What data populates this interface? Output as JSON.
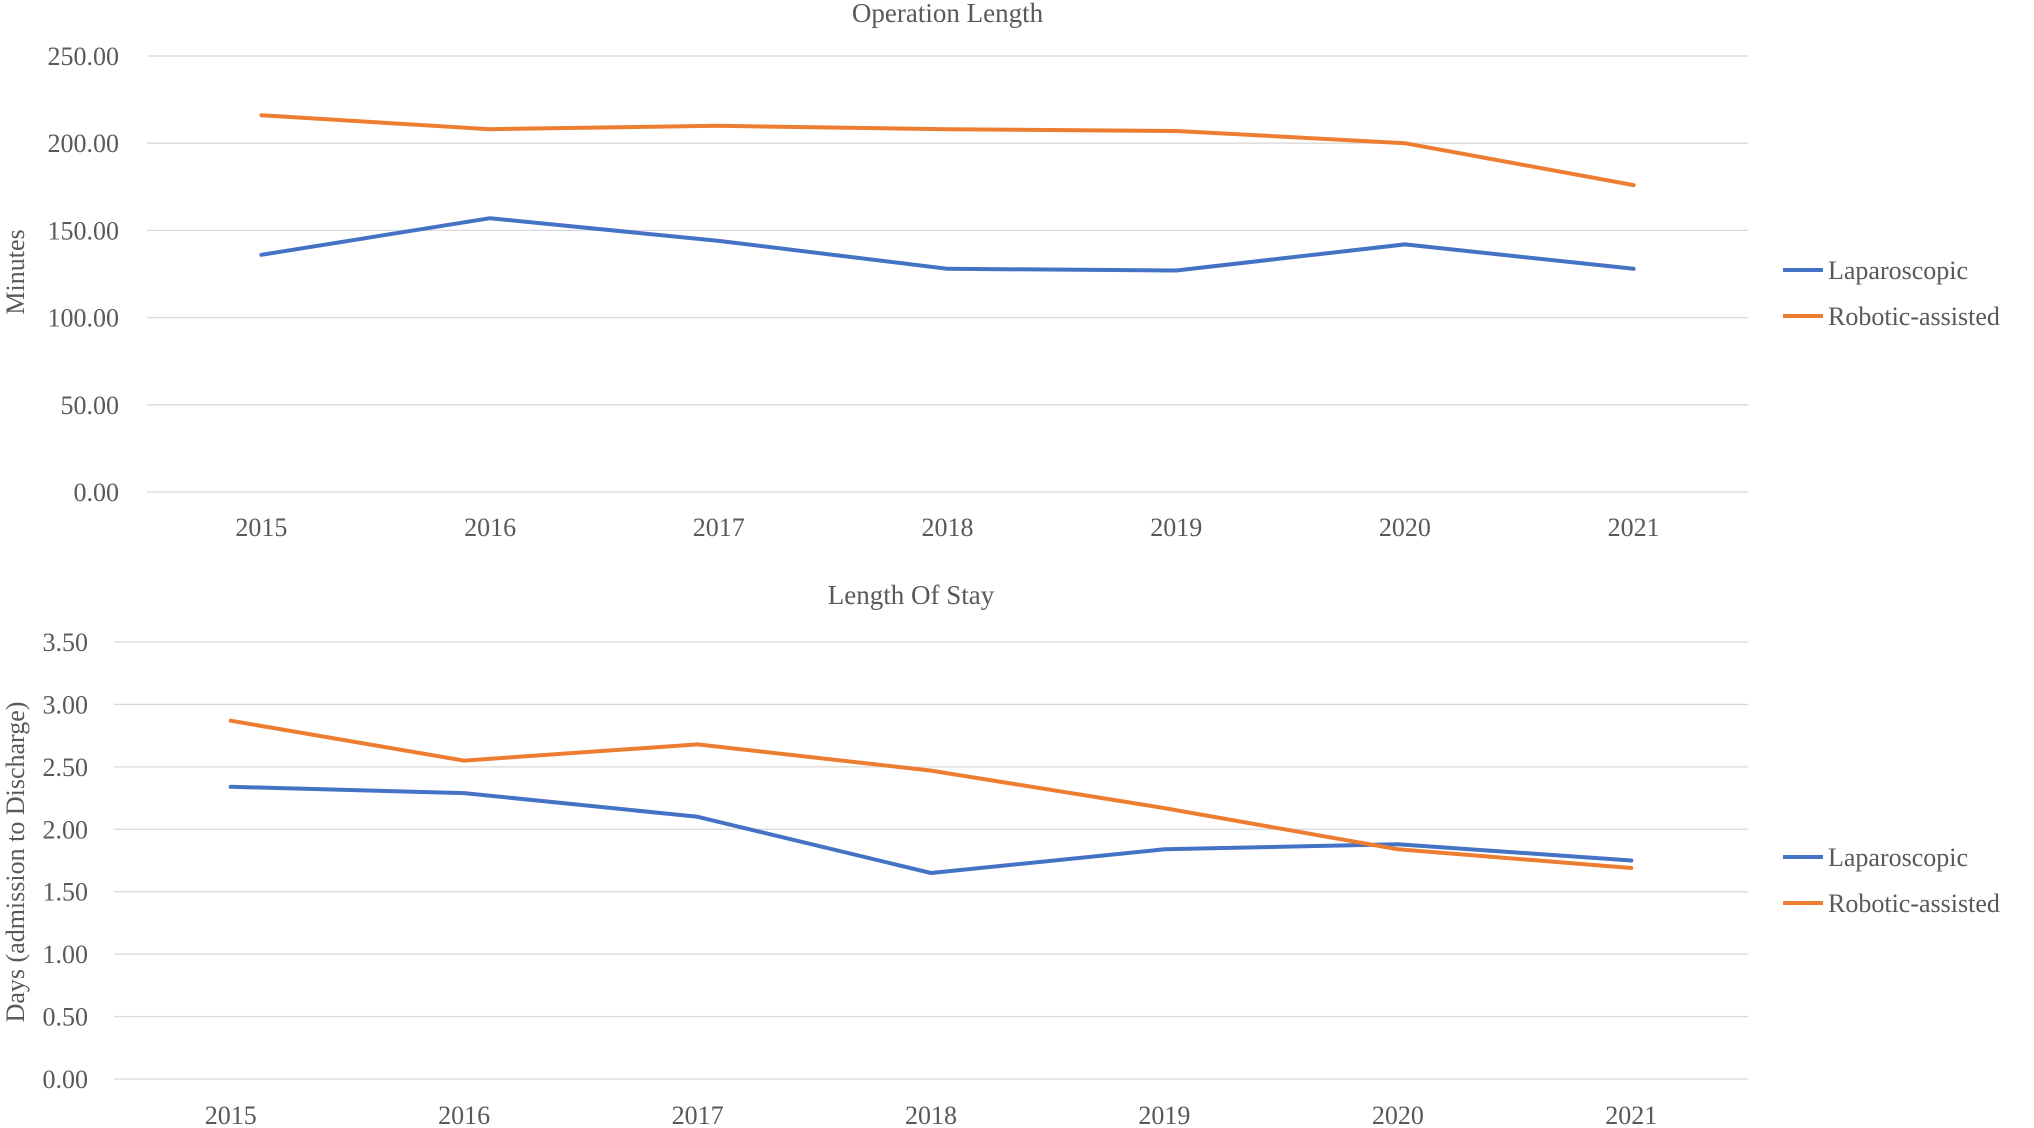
{
  "colors": {
    "laparoscopic": "#4472C4",
    "robotic": "#ED7D31",
    "grid": "#D9D9D9",
    "text": "#595959"
  },
  "chart_data": [
    {
      "type": "line",
      "title": "Operation Length",
      "xlabel": "",
      "ylabel": "Minutes",
      "categories": [
        "2015",
        "2016",
        "2017",
        "2018",
        "2019",
        "2020",
        "2021"
      ],
      "ylim": [
        0,
        250
      ],
      "yticks": [
        0,
        50,
        100,
        150,
        200,
        250
      ],
      "ytick_labels": [
        "0.00",
        "50.00",
        "100.00",
        "150.00",
        "200.00",
        "250.00"
      ],
      "grid": true,
      "legend": "right",
      "series": [
        {
          "name": "Laparoscopic",
          "values": [
            136,
            157,
            144,
            128,
            127,
            142,
            128
          ]
        },
        {
          "name": "Robotic-assisted",
          "values": [
            216,
            208,
            210,
            208,
            207,
            200,
            176
          ]
        }
      ]
    },
    {
      "type": "line",
      "title": "Length Of Stay",
      "xlabel": "",
      "ylabel": "Days (admission to Discharge)",
      "categories": [
        "2015",
        "2016",
        "2017",
        "2018",
        "2019",
        "2020",
        "2021"
      ],
      "ylim": [
        0,
        3.5
      ],
      "yticks": [
        0,
        0.5,
        1,
        1.5,
        2,
        2.5,
        3,
        3.5
      ],
      "ytick_labels": [
        "0.00",
        "0.50",
        "1.00",
        "1.50",
        "2.00",
        "2.50",
        "3.00",
        "3.50"
      ],
      "grid": true,
      "legend": "right",
      "series": [
        {
          "name": "Laparoscopic",
          "values": [
            2.34,
            2.29,
            2.1,
            1.65,
            1.84,
            1.88,
            1.75
          ]
        },
        {
          "name": "Robotic-assisted",
          "values": [
            2.87,
            2.55,
            2.68,
            2.47,
            2.17,
            1.84,
            1.69
          ]
        }
      ]
    }
  ]
}
